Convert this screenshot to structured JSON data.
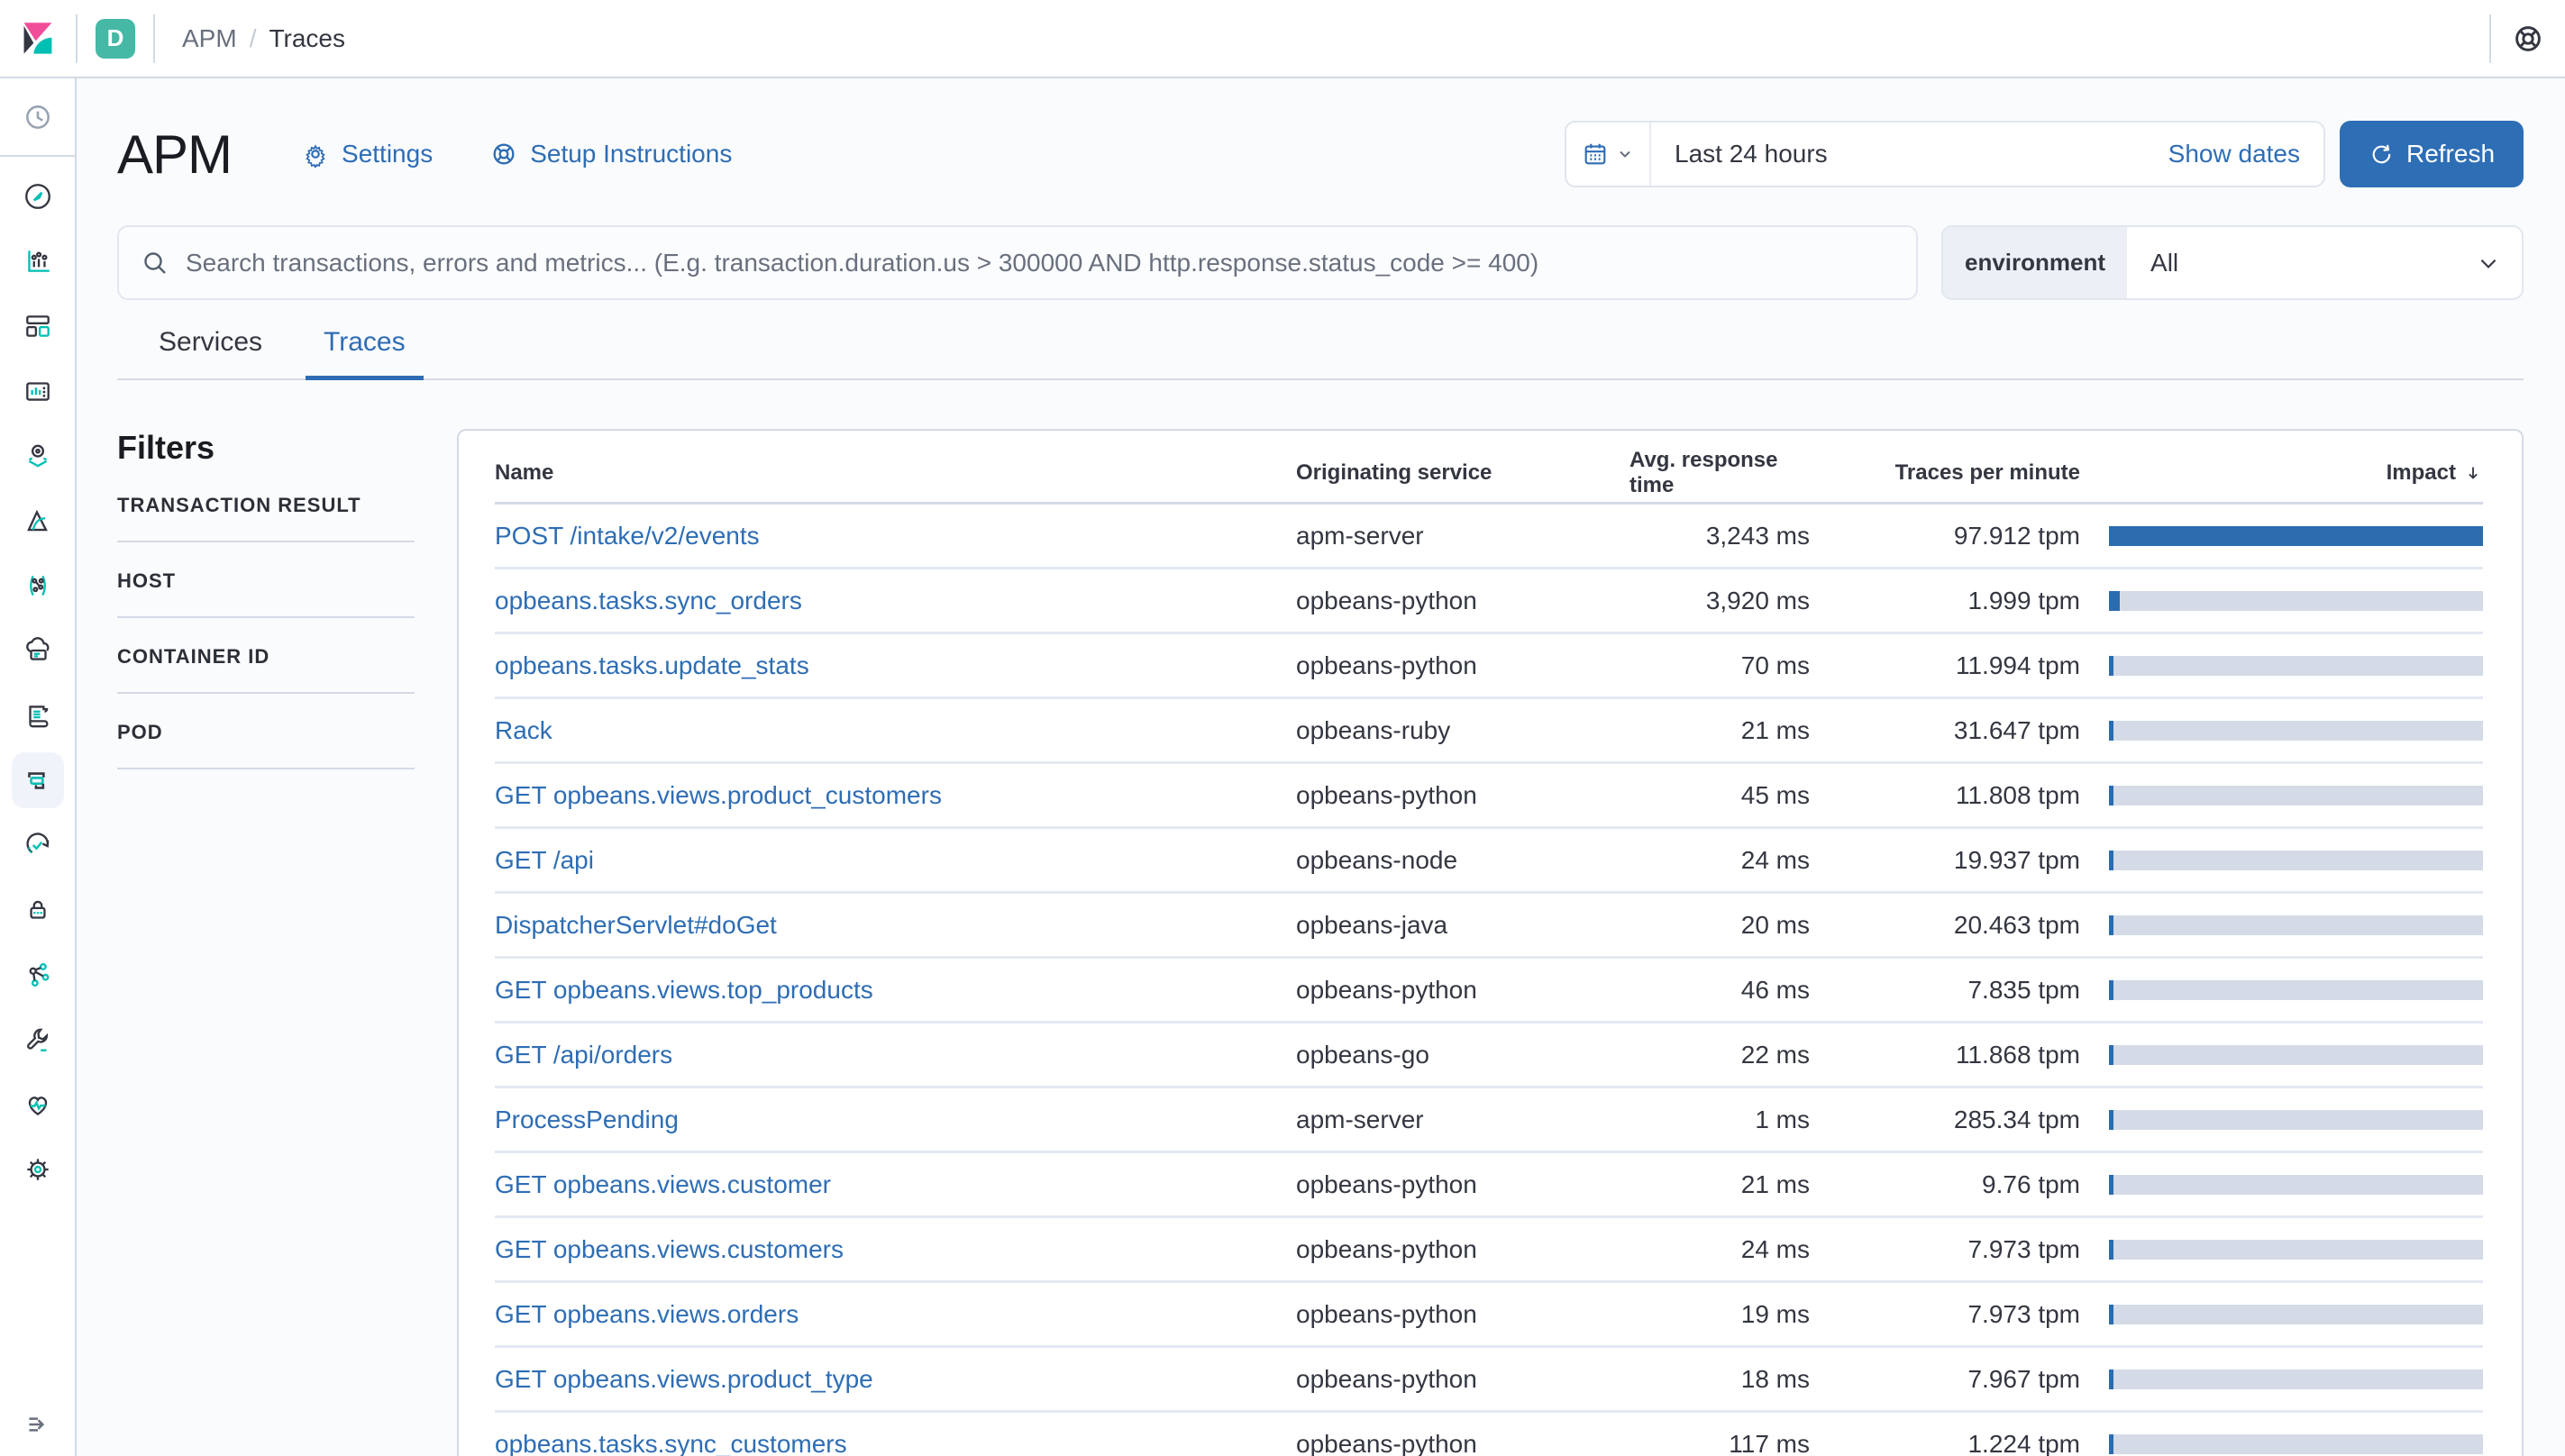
{
  "colors": {
    "accent": "#2e6db4",
    "accent-btn": "#2e6eb5",
    "bar-fill": "#2b6cae",
    "bar-track": "#d5dbe6",
    "badge": "#45b9a5",
    "logo-pink": "#f04e98",
    "logo-dark": "#343741",
    "logo-teal": "#00bfb3"
  },
  "top_bar": {
    "space_badge": "D",
    "breadcrumb": {
      "parent": "APM",
      "separator": "/",
      "current": "Traces"
    }
  },
  "header": {
    "title": "APM",
    "settings_label": "Settings",
    "setup_label": "Setup Instructions"
  },
  "time_picker": {
    "quick_value": "Last 24 hours",
    "show_dates_label": "Show dates",
    "refresh_label": "Refresh"
  },
  "search": {
    "placeholder": "Search transactions, errors and metrics... (E.g. transaction.duration.us > 300000 AND http.response.status_code >= 400)"
  },
  "environment_filter": {
    "label": "environment",
    "value": "All"
  },
  "tabs": [
    {
      "label": "Services",
      "active": false
    },
    {
      "label": "Traces",
      "active": true
    }
  ],
  "filters": {
    "title": "Filters",
    "sections": [
      "TRANSACTION RESULT",
      "HOST",
      "CONTAINER ID",
      "POD"
    ]
  },
  "sidebar": {
    "items": [
      "recently-viewed",
      "discover",
      "visualize",
      "dashboard",
      "canvas",
      "maps",
      "machine-learning",
      "graph",
      "metrics",
      "logs",
      "apm",
      "uptime",
      "siem",
      "code",
      "dev-tools",
      "monitoring",
      "management"
    ],
    "selected": "apm",
    "collapse": "collapse-menu"
  },
  "table": {
    "columns": [
      "Name",
      "Originating service",
      "Avg. response time",
      "Traces per minute",
      "Impact"
    ],
    "sorted_by": "Impact",
    "sort_direction": "desc",
    "rows": [
      {
        "name": "POST /intake/v2/events",
        "service": "apm-server",
        "response": "3,243 ms",
        "tpm": "97.912 tpm",
        "impact_pct": 100
      },
      {
        "name": "opbeans.tasks.sync_orders",
        "service": "opbeans-python",
        "response": "3,920 ms",
        "tpm": "1.999 tpm",
        "impact_pct": 2.8
      },
      {
        "name": "opbeans.tasks.update_stats",
        "service": "opbeans-python",
        "response": "70 ms",
        "tpm": "11.994 tpm",
        "impact_pct": 1.3
      },
      {
        "name": "Rack",
        "service": "opbeans-ruby",
        "response": "21 ms",
        "tpm": "31.647 tpm",
        "impact_pct": 1.3
      },
      {
        "name": "GET opbeans.views.product_customers",
        "service": "opbeans-python",
        "response": "45 ms",
        "tpm": "11.808 tpm",
        "impact_pct": 1.1
      },
      {
        "name": "GET /api",
        "service": "opbeans-node",
        "response": "24 ms",
        "tpm": "19.937 tpm",
        "impact_pct": 1.1
      },
      {
        "name": "DispatcherServlet#doGet",
        "service": "opbeans-java",
        "response": "20 ms",
        "tpm": "20.463 tpm",
        "impact_pct": 1.1
      },
      {
        "name": "GET opbeans.views.top_products",
        "service": "opbeans-python",
        "response": "46 ms",
        "tpm": "7.835 tpm",
        "impact_pct": 0.9
      },
      {
        "name": "GET /api/orders",
        "service": "opbeans-go",
        "response": "22 ms",
        "tpm": "11.868 tpm",
        "impact_pct": 0.9
      },
      {
        "name": "ProcessPending",
        "service": "apm-server",
        "response": "1 ms",
        "tpm": "285.34 tpm",
        "impact_pct": 0.9
      },
      {
        "name": "GET opbeans.views.customer",
        "service": "opbeans-python",
        "response": "21 ms",
        "tpm": "9.76 tpm",
        "impact_pct": 0.7
      },
      {
        "name": "GET opbeans.views.customers",
        "service": "opbeans-python",
        "response": "24 ms",
        "tpm": "7.973 tpm",
        "impact_pct": 0.7
      },
      {
        "name": "GET opbeans.views.orders",
        "service": "opbeans-python",
        "response": "19 ms",
        "tpm": "7.973 tpm",
        "impact_pct": 0.7
      },
      {
        "name": "GET opbeans.views.product_type",
        "service": "opbeans-python",
        "response": "18 ms",
        "tpm": "7.967 tpm",
        "impact_pct": 0.7
      },
      {
        "name": "opbeans.tasks.sync_customers",
        "service": "opbeans-python",
        "response": "117 ms",
        "tpm": "1.224 tpm",
        "impact_pct": 0.7
      }
    ]
  }
}
